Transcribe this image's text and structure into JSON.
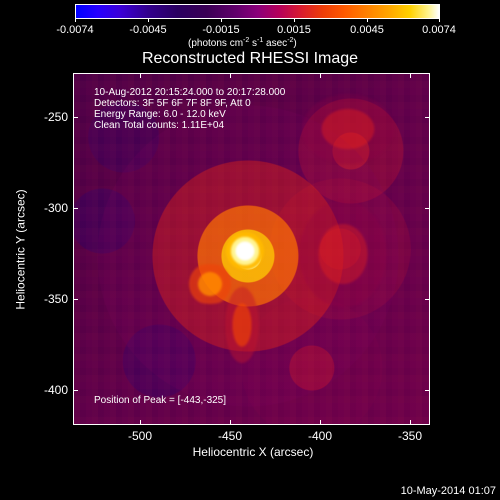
{
  "colorbar": {
    "tick_labels": [
      "-0.0074",
      "-0.0045",
      "-0.0015",
      "0.0015",
      "0.0045",
      "0.0074"
    ],
    "units_text_prefix": "(photons cm",
    "units_sup_1": "-2",
    "units_text_middle": " s",
    "units_sup_2": "-1",
    "units_text_middle_2": " asec",
    "units_sup_3": "-2",
    "units_text_suffix": ")"
  },
  "title": "Reconstructed RHESSI Image",
  "overlay": {
    "line1": "10-Aug-2012 20:15:24.000 to 20:17:28.000",
    "line2": "Detectors: 3F 5F 6F 7F 8F 9F, Att 0",
    "line3": "Energy Range: 6.0 - 12.0 keV",
    "line4": "Clean     Total counts: 1.11E+04",
    "peak": "Position of Peak = [-443,-325]"
  },
  "axes": {
    "x_ticks": [
      "-500",
      "-450",
      "-400",
      "-350"
    ],
    "y_ticks": [
      "-250",
      "-300",
      "-350",
      "-400"
    ],
    "x_title": "Heliocentric X (arcsec)",
    "y_title": "Heliocentric Y (arcsec)"
  },
  "footer": "10-May-2014 01:07",
  "colors": {
    "background": "#000000",
    "peak": "#ffffff",
    "hot": "#ffd100",
    "orange": "#ff6a00",
    "red": "#d81b2f",
    "purple": "#47003f"
  }
}
